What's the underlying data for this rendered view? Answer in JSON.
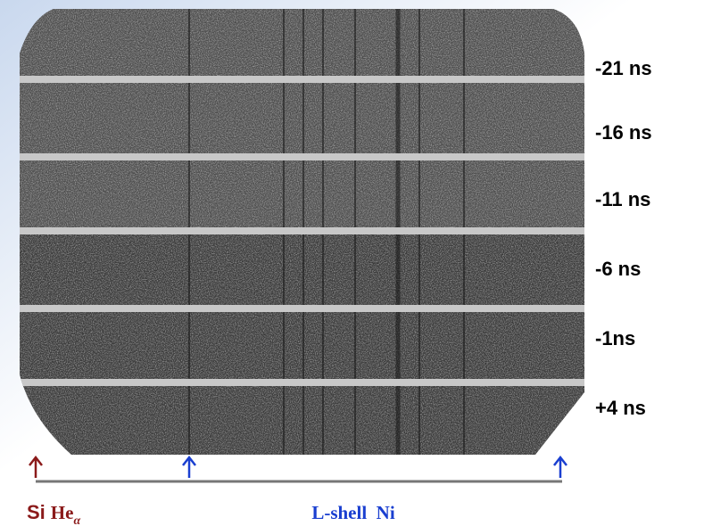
{
  "time_labels": [
    "-21 ns",
    "-16 ns",
    "-11 ns",
    "-6 ns",
    "-1ns",
    "+4 ns"
  ],
  "footer": {
    "element": "Si",
    "line": "He",
    "line_subscript": "α",
    "range_label": "L-shell  Ni"
  }
}
